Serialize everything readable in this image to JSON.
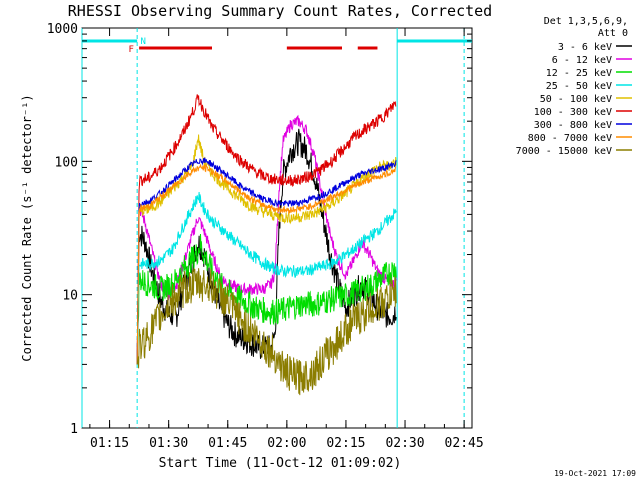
{
  "chart_data": {
    "type": "line",
    "title": "RHESSI Observing Summary Count Rates, Corrected",
    "xlabel": "Start Time (11-Oct-12 01:09:02)",
    "ylabel": "Corrected Count Rate (s⁻¹ detector⁻¹)",
    "yscale": "log",
    "ylim": [
      1,
      1000
    ],
    "xlim_minutes_after_0110": [
      -2,
      97
    ],
    "x_ticks": [
      {
        "label": "01:15",
        "min": 5
      },
      {
        "label": "01:30",
        "min": 20
      },
      {
        "label": "01:45",
        "min": 35
      },
      {
        "label": "02:00",
        "min": 50
      },
      {
        "label": "02:15",
        "min": 65
      },
      {
        "label": "02:30",
        "min": 80
      },
      {
        "label": "02:45",
        "min": 95
      }
    ],
    "y_ticks": [
      {
        "label": "1",
        "value": 1
      },
      {
        "label": "10",
        "value": 10
      },
      {
        "label": "100",
        "value": 100
      },
      {
        "label": "1000",
        "value": 1000
      }
    ],
    "legend_header": [
      "Det 1,3,5,6,9,",
      "Att 0"
    ],
    "legend_placement": "top-right outside",
    "grid": false,
    "series": [
      {
        "name": "3 - 6 keV",
        "color": "#000000",
        "points": [
          [
            12,
            3
          ],
          [
            12.5,
            30
          ],
          [
            14,
            25
          ],
          [
            16,
            14
          ],
          [
            18,
            9
          ],
          [
            20,
            7
          ],
          [
            22,
            7
          ],
          [
            24,
            12
          ],
          [
            26,
            18
          ],
          [
            27.5,
            25
          ],
          [
            29,
            20
          ],
          [
            31,
            12
          ],
          [
            33,
            8
          ],
          [
            35,
            6
          ],
          [
            37,
            5
          ],
          [
            40,
            4.5
          ],
          [
            43,
            4
          ],
          [
            46,
            4
          ],
          [
            47,
            5
          ],
          [
            48,
            30
          ],
          [
            49,
            80
          ],
          [
            51,
            120
          ],
          [
            53,
            140
          ],
          [
            55,
            120
          ],
          [
            57,
            80
          ],
          [
            59,
            40
          ],
          [
            61,
            20
          ],
          [
            63,
            12
          ],
          [
            65,
            8
          ],
          [
            67,
            10
          ],
          [
            69,
            12
          ],
          [
            71,
            10
          ],
          [
            73,
            8
          ],
          [
            75,
            7
          ],
          [
            77,
            7
          ],
          [
            77.8,
            8
          ]
        ]
      },
      {
        "name": "6 - 12 keV",
        "color": "#e000e0",
        "points": [
          [
            12,
            3
          ],
          [
            12.5,
            45
          ],
          [
            14,
            35
          ],
          [
            16,
            20
          ],
          [
            18,
            12
          ],
          [
            20,
            10
          ],
          [
            22,
            12
          ],
          [
            24,
            18
          ],
          [
            26,
            28
          ],
          [
            27.5,
            38
          ],
          [
            29,
            30
          ],
          [
            31,
            20
          ],
          [
            33,
            14
          ],
          [
            35,
            12
          ],
          [
            38,
            11
          ],
          [
            41,
            11
          ],
          [
            44,
            11
          ],
          [
            46,
            12
          ],
          [
            47,
            15
          ],
          [
            48,
            60
          ],
          [
            49,
            140
          ],
          [
            51,
            190
          ],
          [
            53,
            200
          ],
          [
            55,
            170
          ],
          [
            57,
            110
          ],
          [
            59,
            55
          ],
          [
            61,
            28
          ],
          [
            63,
            18
          ],
          [
            65,
            14
          ],
          [
            67,
            18
          ],
          [
            69,
            25
          ],
          [
            71,
            20
          ],
          [
            73,
            15
          ],
          [
            75,
            13
          ],
          [
            77,
            12
          ],
          [
            77.8,
            13
          ]
        ]
      },
      {
        "name": "12 - 25 keV",
        "color": "#00dd00",
        "points": [
          [
            12,
            3
          ],
          [
            12.5,
            13
          ],
          [
            15,
            12
          ],
          [
            18,
            11
          ],
          [
            21,
            12
          ],
          [
            24,
            16
          ],
          [
            27,
            20
          ],
          [
            28,
            24
          ],
          [
            29,
            20
          ],
          [
            31,
            15
          ],
          [
            33,
            12
          ],
          [
            36,
            10
          ],
          [
            39,
            9
          ],
          [
            42,
            8
          ],
          [
            45,
            7.5
          ],
          [
            48,
            7.5
          ],
          [
            51,
            8
          ],
          [
            54,
            8.5
          ],
          [
            57,
            8.5
          ],
          [
            60,
            9
          ],
          [
            63,
            9.5
          ],
          [
            66,
            10
          ],
          [
            69,
            11
          ],
          [
            72,
            12
          ],
          [
            75,
            14
          ],
          [
            77.8,
            16
          ]
        ]
      },
      {
        "name": "25 - 50 keV",
        "color": "#00e5e5",
        "points": [
          [
            12,
            3
          ],
          [
            12.5,
            17
          ],
          [
            15,
            17
          ],
          [
            18,
            18
          ],
          [
            21,
            22
          ],
          [
            24,
            34
          ],
          [
            26,
            45
          ],
          [
            27.5,
            55
          ],
          [
            29,
            44
          ],
          [
            31,
            36
          ],
          [
            34,
            30
          ],
          [
            37,
            25
          ],
          [
            40,
            21
          ],
          [
            43,
            18
          ],
          [
            46,
            16
          ],
          [
            49,
            15
          ],
          [
            52,
            15
          ],
          [
            55,
            15
          ],
          [
            58,
            16
          ],
          [
            61,
            17
          ],
          [
            64,
            19
          ],
          [
            67,
            22
          ],
          [
            70,
            26
          ],
          [
            73,
            30
          ],
          [
            76,
            37
          ],
          [
            77.8,
            42
          ]
        ]
      },
      {
        "name": "50 - 100 keV",
        "color": "#e0c000",
        "points": [
          [
            12,
            3
          ],
          [
            12.5,
            42
          ],
          [
            15,
            44
          ],
          [
            18,
            50
          ],
          [
            21,
            62
          ],
          [
            24,
            78
          ],
          [
            26,
            92
          ],
          [
            27.5,
            150
          ],
          [
            29,
            100
          ],
          [
            31,
            82
          ],
          [
            34,
            67
          ],
          [
            37,
            56
          ],
          [
            40,
            48
          ],
          [
            43,
            43
          ],
          [
            46,
            40
          ],
          [
            49,
            38
          ],
          [
            52,
            38
          ],
          [
            55,
            39
          ],
          [
            58,
            42
          ],
          [
            61,
            47
          ],
          [
            64,
            55
          ],
          [
            67,
            65
          ],
          [
            70,
            78
          ],
          [
            73,
            90
          ],
          [
            75.5,
            92
          ],
          [
            77.8,
            100
          ]
        ]
      },
      {
        "name": "100 - 300 keV",
        "color": "#dd0000",
        "points": [
          [
            12,
            3
          ],
          [
            12.5,
            72
          ],
          [
            15,
            75
          ],
          [
            18,
            90
          ],
          [
            21,
            120
          ],
          [
            24,
            170
          ],
          [
            26,
            230
          ],
          [
            27.5,
            300
          ],
          [
            29,
            240
          ],
          [
            31,
            180
          ],
          [
            34,
            140
          ],
          [
            37,
            110
          ],
          [
            40,
            92
          ],
          [
            43,
            80
          ],
          [
            46,
            74
          ],
          [
            49,
            72
          ],
          [
            52,
            72
          ],
          [
            55,
            76
          ],
          [
            58,
            84
          ],
          [
            61,
            98
          ],
          [
            64,
            120
          ],
          [
            67,
            150
          ],
          [
            70,
            175
          ],
          [
            73,
            200
          ],
          [
            75.5,
            230
          ],
          [
            77.8,
            280
          ]
        ]
      },
      {
        "name": "300 - 800 keV",
        "color": "#0000dd",
        "points": [
          [
            12,
            3
          ],
          [
            12.5,
            48
          ],
          [
            15,
            50
          ],
          [
            18,
            58
          ],
          [
            21,
            70
          ],
          [
            24,
            85
          ],
          [
            26,
            95
          ],
          [
            28,
            102
          ],
          [
            30,
            100
          ],
          [
            32,
            90
          ],
          [
            35,
            78
          ],
          [
            38,
            66
          ],
          [
            41,
            58
          ],
          [
            44,
            52
          ],
          [
            47,
            49
          ],
          [
            50,
            48
          ],
          [
            53,
            49
          ],
          [
            56,
            52
          ],
          [
            59,
            56
          ],
          [
            62,
            62
          ],
          [
            65,
            70
          ],
          [
            68,
            78
          ],
          [
            71,
            84
          ],
          [
            74,
            88
          ],
          [
            76,
            92
          ],
          [
            77.8,
            97
          ]
        ]
      },
      {
        "name": "800 - 7000 keV",
        "color": "#ff8c00",
        "points": [
          [
            12,
            3
          ],
          [
            12.5,
            44
          ],
          [
            15,
            46
          ],
          [
            18,
            54
          ],
          [
            21,
            64
          ],
          [
            24,
            76
          ],
          [
            26,
            85
          ],
          [
            28,
            90
          ],
          [
            30,
            88
          ],
          [
            32,
            80
          ],
          [
            35,
            70
          ],
          [
            38,
            60
          ],
          [
            41,
            52
          ],
          [
            44,
            47
          ],
          [
            47,
            44
          ],
          [
            50,
            43
          ],
          [
            53,
            44
          ],
          [
            56,
            46
          ],
          [
            59,
            50
          ],
          [
            62,
            55
          ],
          [
            65,
            61
          ],
          [
            68,
            67
          ],
          [
            71,
            73
          ],
          [
            74,
            78
          ],
          [
            76,
            82
          ],
          [
            77.8,
            88
          ]
        ]
      },
      {
        "name": "7000 - 15000 keV",
        "color": "#8b7d00",
        "points": [
          [
            12,
            3
          ],
          [
            12.5,
            4
          ],
          [
            15,
            5
          ],
          [
            18,
            7
          ],
          [
            21,
            9
          ],
          [
            24,
            11
          ],
          [
            27,
            12
          ],
          [
            30,
            12
          ],
          [
            33,
            10
          ],
          [
            36,
            8
          ],
          [
            39,
            6
          ],
          [
            42,
            5
          ],
          [
            45,
            4
          ],
          [
            47,
            3.5
          ],
          [
            49,
            2.8
          ],
          [
            51,
            2.5
          ],
          [
            53,
            2.4
          ],
          [
            55,
            2.5
          ],
          [
            57,
            2.7
          ],
          [
            59,
            3.2
          ],
          [
            61,
            3.8
          ],
          [
            63,
            4.5
          ],
          [
            66,
            6
          ],
          [
            69,
            7
          ],
          [
            72,
            8
          ],
          [
            75,
            9
          ],
          [
            77.8,
            11
          ]
        ]
      }
    ],
    "flags": [
      {
        "label": "F",
        "color": "#dd0000"
      },
      {
        "label": "N",
        "color": "#00e5e5"
      }
    ],
    "flag_segments_red": [
      [
        12.5,
        31
      ],
      [
        50,
        64
      ],
      [
        68,
        73
      ]
    ],
    "flag_segments_cyan": [
      [
        -2,
        12
      ],
      [
        78,
        97
      ]
    ],
    "vertical_markers": [
      {
        "min": -2,
        "style": "solid"
      },
      {
        "min": 12,
        "style": "dashed"
      },
      {
        "min": 78,
        "style": "solid"
      },
      {
        "min": 95,
        "style": "dashed"
      }
    ],
    "footer_date": "19-Oct-2021 17:09"
  }
}
